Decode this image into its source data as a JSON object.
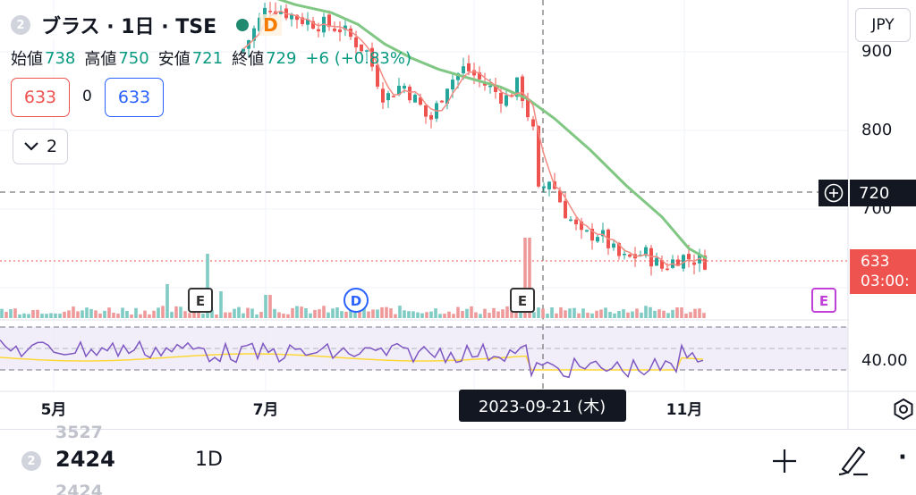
{
  "header": {
    "series_badge": "2",
    "title": "ブラス · 1日 · TSE",
    "dividend_marker": "D",
    "ohlc": [
      {
        "label": "始値",
        "value": "738"
      },
      {
        "label": "高値",
        "value": "750"
      },
      {
        "label": "安値",
        "value": "721"
      },
      {
        "label": "終値",
        "value": "729"
      }
    ],
    "change": "+6 (+0.83%)",
    "sell_price": "633",
    "spread": "0",
    "buy_price": "633",
    "collapse_count": "2"
  },
  "price_axis": {
    "currency": "JPY",
    "ticks": [
      "900",
      "800",
      "700"
    ],
    "crosshair_price": "720",
    "last_price": "633",
    "countdown": "03:00:",
    "rsi_value": "40.00"
  },
  "time_axis": {
    "ticks": [
      "5月",
      "7月",
      "11月"
    ],
    "crosshair_date": "2023-09-21 (木)"
  },
  "markers": {
    "earnings": "E",
    "dividend": "D"
  },
  "bottom_bar": {
    "badge": "2",
    "ghost_above": "3527",
    "symbol_value": "2424",
    "interval": "1D",
    "ghost_below": "2424",
    "more": "·"
  },
  "colors": {
    "up": "#26a69a",
    "down": "#ef5350",
    "ma_long": "#81c784",
    "ma_short": "#f28b82",
    "rsi": "#7e57c2",
    "rsi_ma": "#fdd835",
    "earnings_marker": "#333333",
    "earnings_future": "#c040d8",
    "dividend_marker": "#2962ff"
  }
}
